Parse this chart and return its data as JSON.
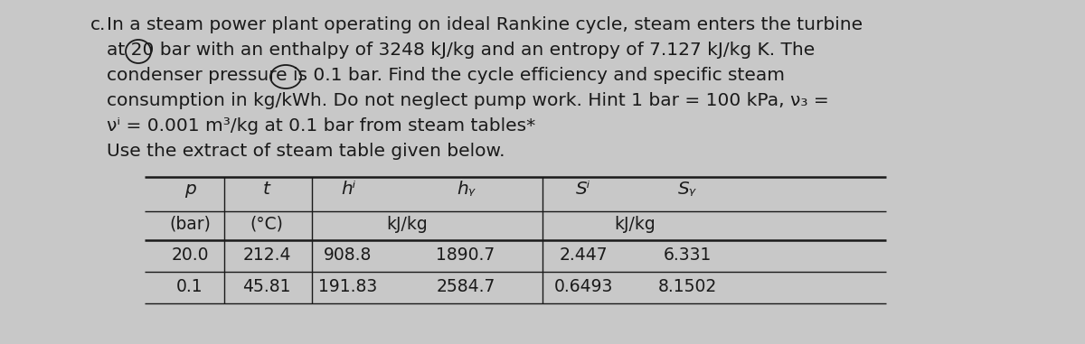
{
  "background_color": "#c8c8c8",
  "text_color": "#1a1a1a",
  "paragraph_c_label": "c.",
  "body_lines": [
    "In a steam power plant operating on ideal Rankine cycle, steam enters the turbine",
    "at 20 bar with an enthalpy of 3248 kJ/kg and an entropy of 7.127 kJ/kg K. The",
    "condenser pressure is 0.1 bar. Find the cycle efficiency and specific steam",
    "consumption in kg/kWh. Do not neglect pump work. Hint 1 bar = 100 kPa, ν₃ =",
    "νⁱ = 0.001 m³/kg at 0.1 bar from steam tables*",
    "Use the extract of steam table given below."
  ],
  "table_col_headers": [
    "p",
    "t",
    "hⁱ",
    "hᵧ",
    "Sⁱ",
    "Sᵧ"
  ],
  "table_unit_row": [
    "(bar)",
    "(°C)",
    "kJ/kg",
    "",
    "kJ/kg",
    ""
  ],
  "table_unit_spans": [
    {
      "label": "(bar)",
      "col": 0
    },
    {
      "label": "(°C)",
      "col": 1
    },
    {
      "label": "kJ/kg",
      "cols": [
        2,
        3
      ]
    },
    {
      "label": "kJ/kg",
      "cols": [
        4,
        5
      ]
    }
  ],
  "table_data": [
    [
      "20.0",
      "212.4",
      "908.8",
      "1890.7",
      "2.447",
      "6.331"
    ],
    [
      "0.1",
      "45.81",
      "191.83",
      "2584.7",
      "0.6493",
      "8.1502"
    ]
  ],
  "font_size_body": 14.5,
  "font_size_table": 13.5
}
